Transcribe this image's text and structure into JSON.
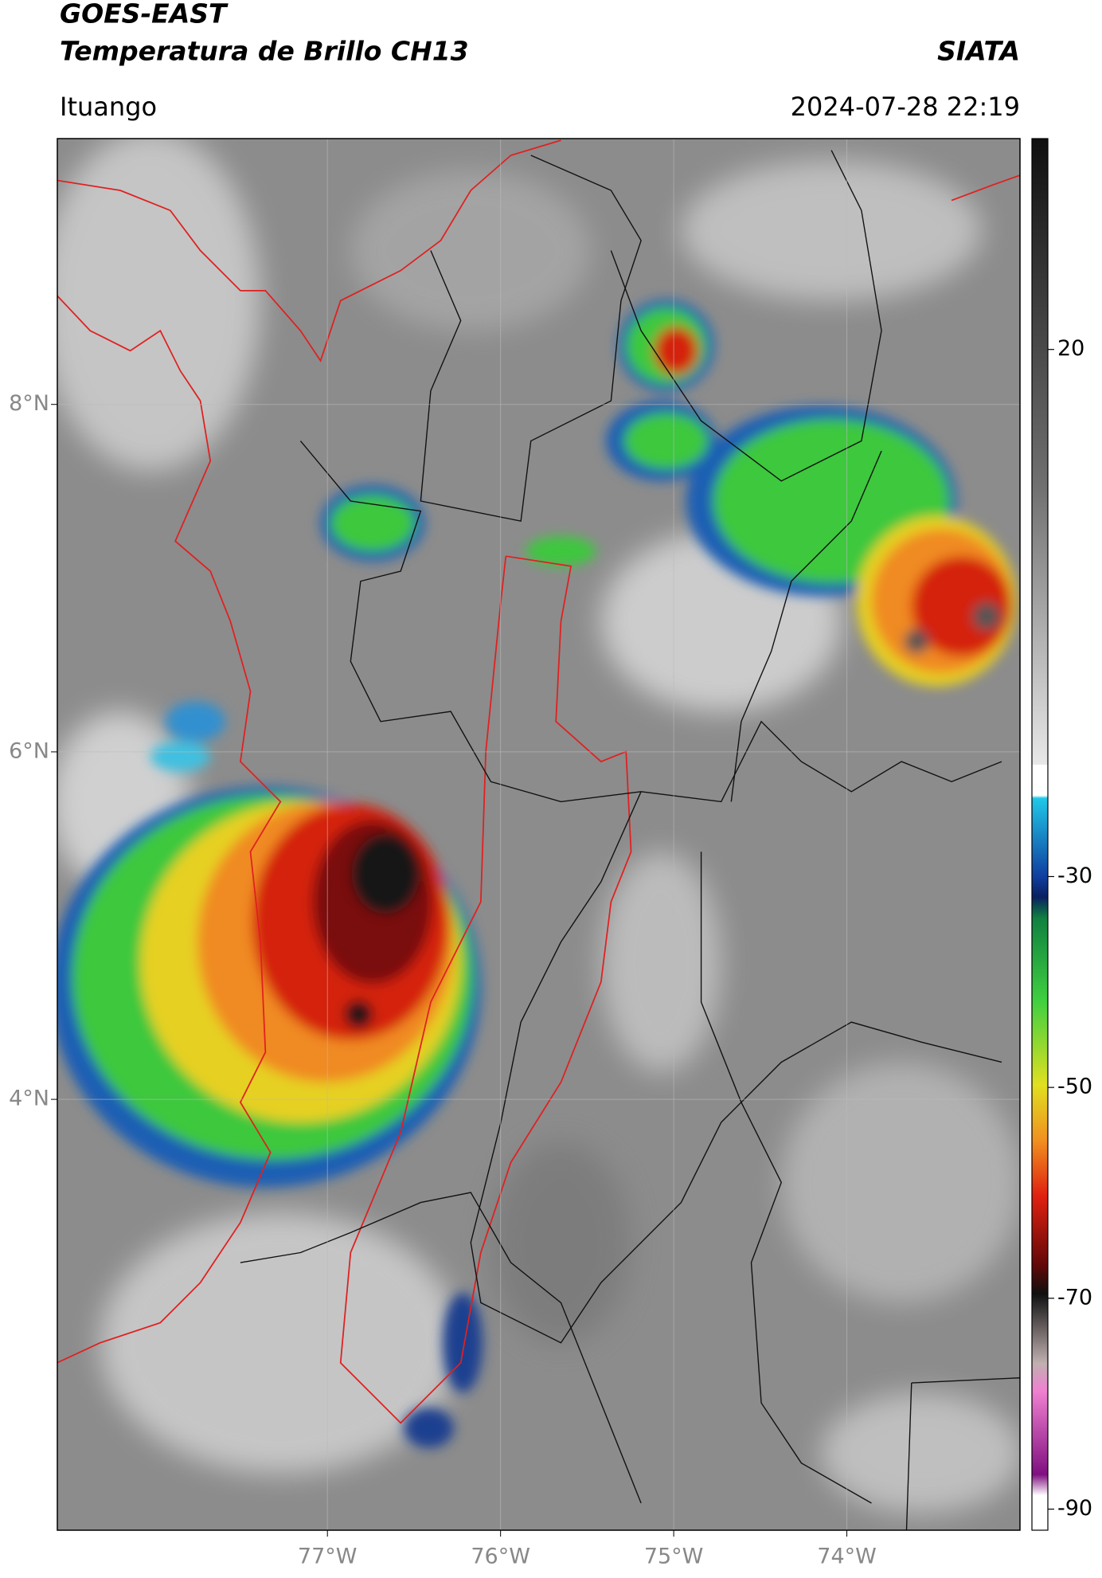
{
  "header": {
    "title": "GOES-EAST",
    "subtitle": "Temperatura de Brillo CH13",
    "organization": "SIATA",
    "location": "Ituango",
    "datetime": "2024-07-28 22:19"
  },
  "map": {
    "type": "map",
    "xlim": [
      -78.56,
      -73.0
    ],
    "ylim": [
      1.52,
      9.53
    ],
    "xticks": [
      {
        "value": -77,
        "label": "77°W"
      },
      {
        "value": -76,
        "label": "76°W"
      },
      {
        "value": -75,
        "label": "75°W"
      },
      {
        "value": -74,
        "label": "74°W"
      }
    ],
    "yticks": [
      {
        "value": 4,
        "label": "4°N"
      },
      {
        "value": 6,
        "label": "6°N"
      },
      {
        "value": 8,
        "label": "8°N"
      }
    ],
    "grid": true,
    "colorbar": {
      "clim": [
        -92,
        40
      ],
      "ticks": [
        20,
        -30,
        -50,
        -70,
        -90
      ]
    }
  }
}
